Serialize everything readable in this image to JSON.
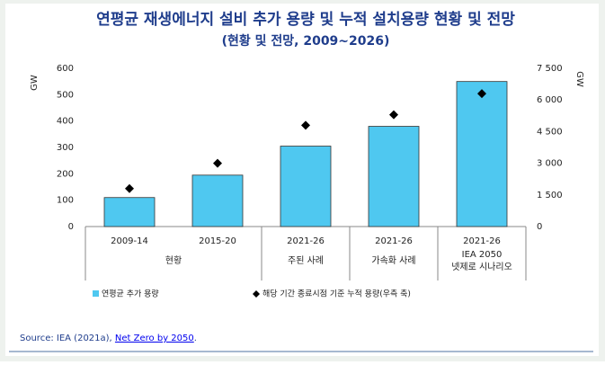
{
  "chart_data": {
    "type": "bar",
    "title": "연평균 재생에너지 설비 추가 용량 및 누적 설치용량 현황 및 전망",
    "subtitle": "(현황 및 전망, 2009~2026)",
    "ylabel": "GW",
    "y2label": "GW",
    "groups": [
      {
        "label": "현황",
        "categories": [
          "2009-14",
          "2015-20"
        ]
      },
      {
        "label": "주된 사례",
        "categories": [
          "2021-26"
        ]
      },
      {
        "label": "가속화 사례",
        "categories": [
          "2021-26"
        ]
      },
      {
        "label": [
          "IEA 2050",
          "넷제로 시나리오"
        ],
        "categories": [
          "2021-26"
        ]
      }
    ],
    "series": [
      {
        "name": "연평균 추가 용량",
        "color": "#4fc8f0",
        "values": [
          110,
          195,
          305,
          380,
          550
        ]
      },
      {
        "name": "해당 기간 종료시점 기준 누적 용량(우측 축)",
        "color": "#000000",
        "axis": "y2",
        "values": [
          1800,
          3000,
          4800,
          5300,
          6300
        ]
      }
    ],
    "ylim": [
      0,
      600
    ],
    "yticks": [
      0,
      100,
      200,
      300,
      400,
      500,
      600
    ],
    "y2lim": [
      0,
      7500
    ],
    "y2ticks": [
      0,
      {
        "value": 1500,
        "label": "1 500"
      },
      {
        "value": 3000,
        "label": "3 000"
      },
      {
        "value": 4500,
        "label": "4 500"
      },
      {
        "value": 6000,
        "label": "6 000"
      },
      {
        "value": 7500,
        "label": "7 500"
      }
    ],
    "source_prefix": "Source: IEA (2021a), ",
    "source_link": "Net Zero by 2050",
    "source_suffix": "."
  }
}
